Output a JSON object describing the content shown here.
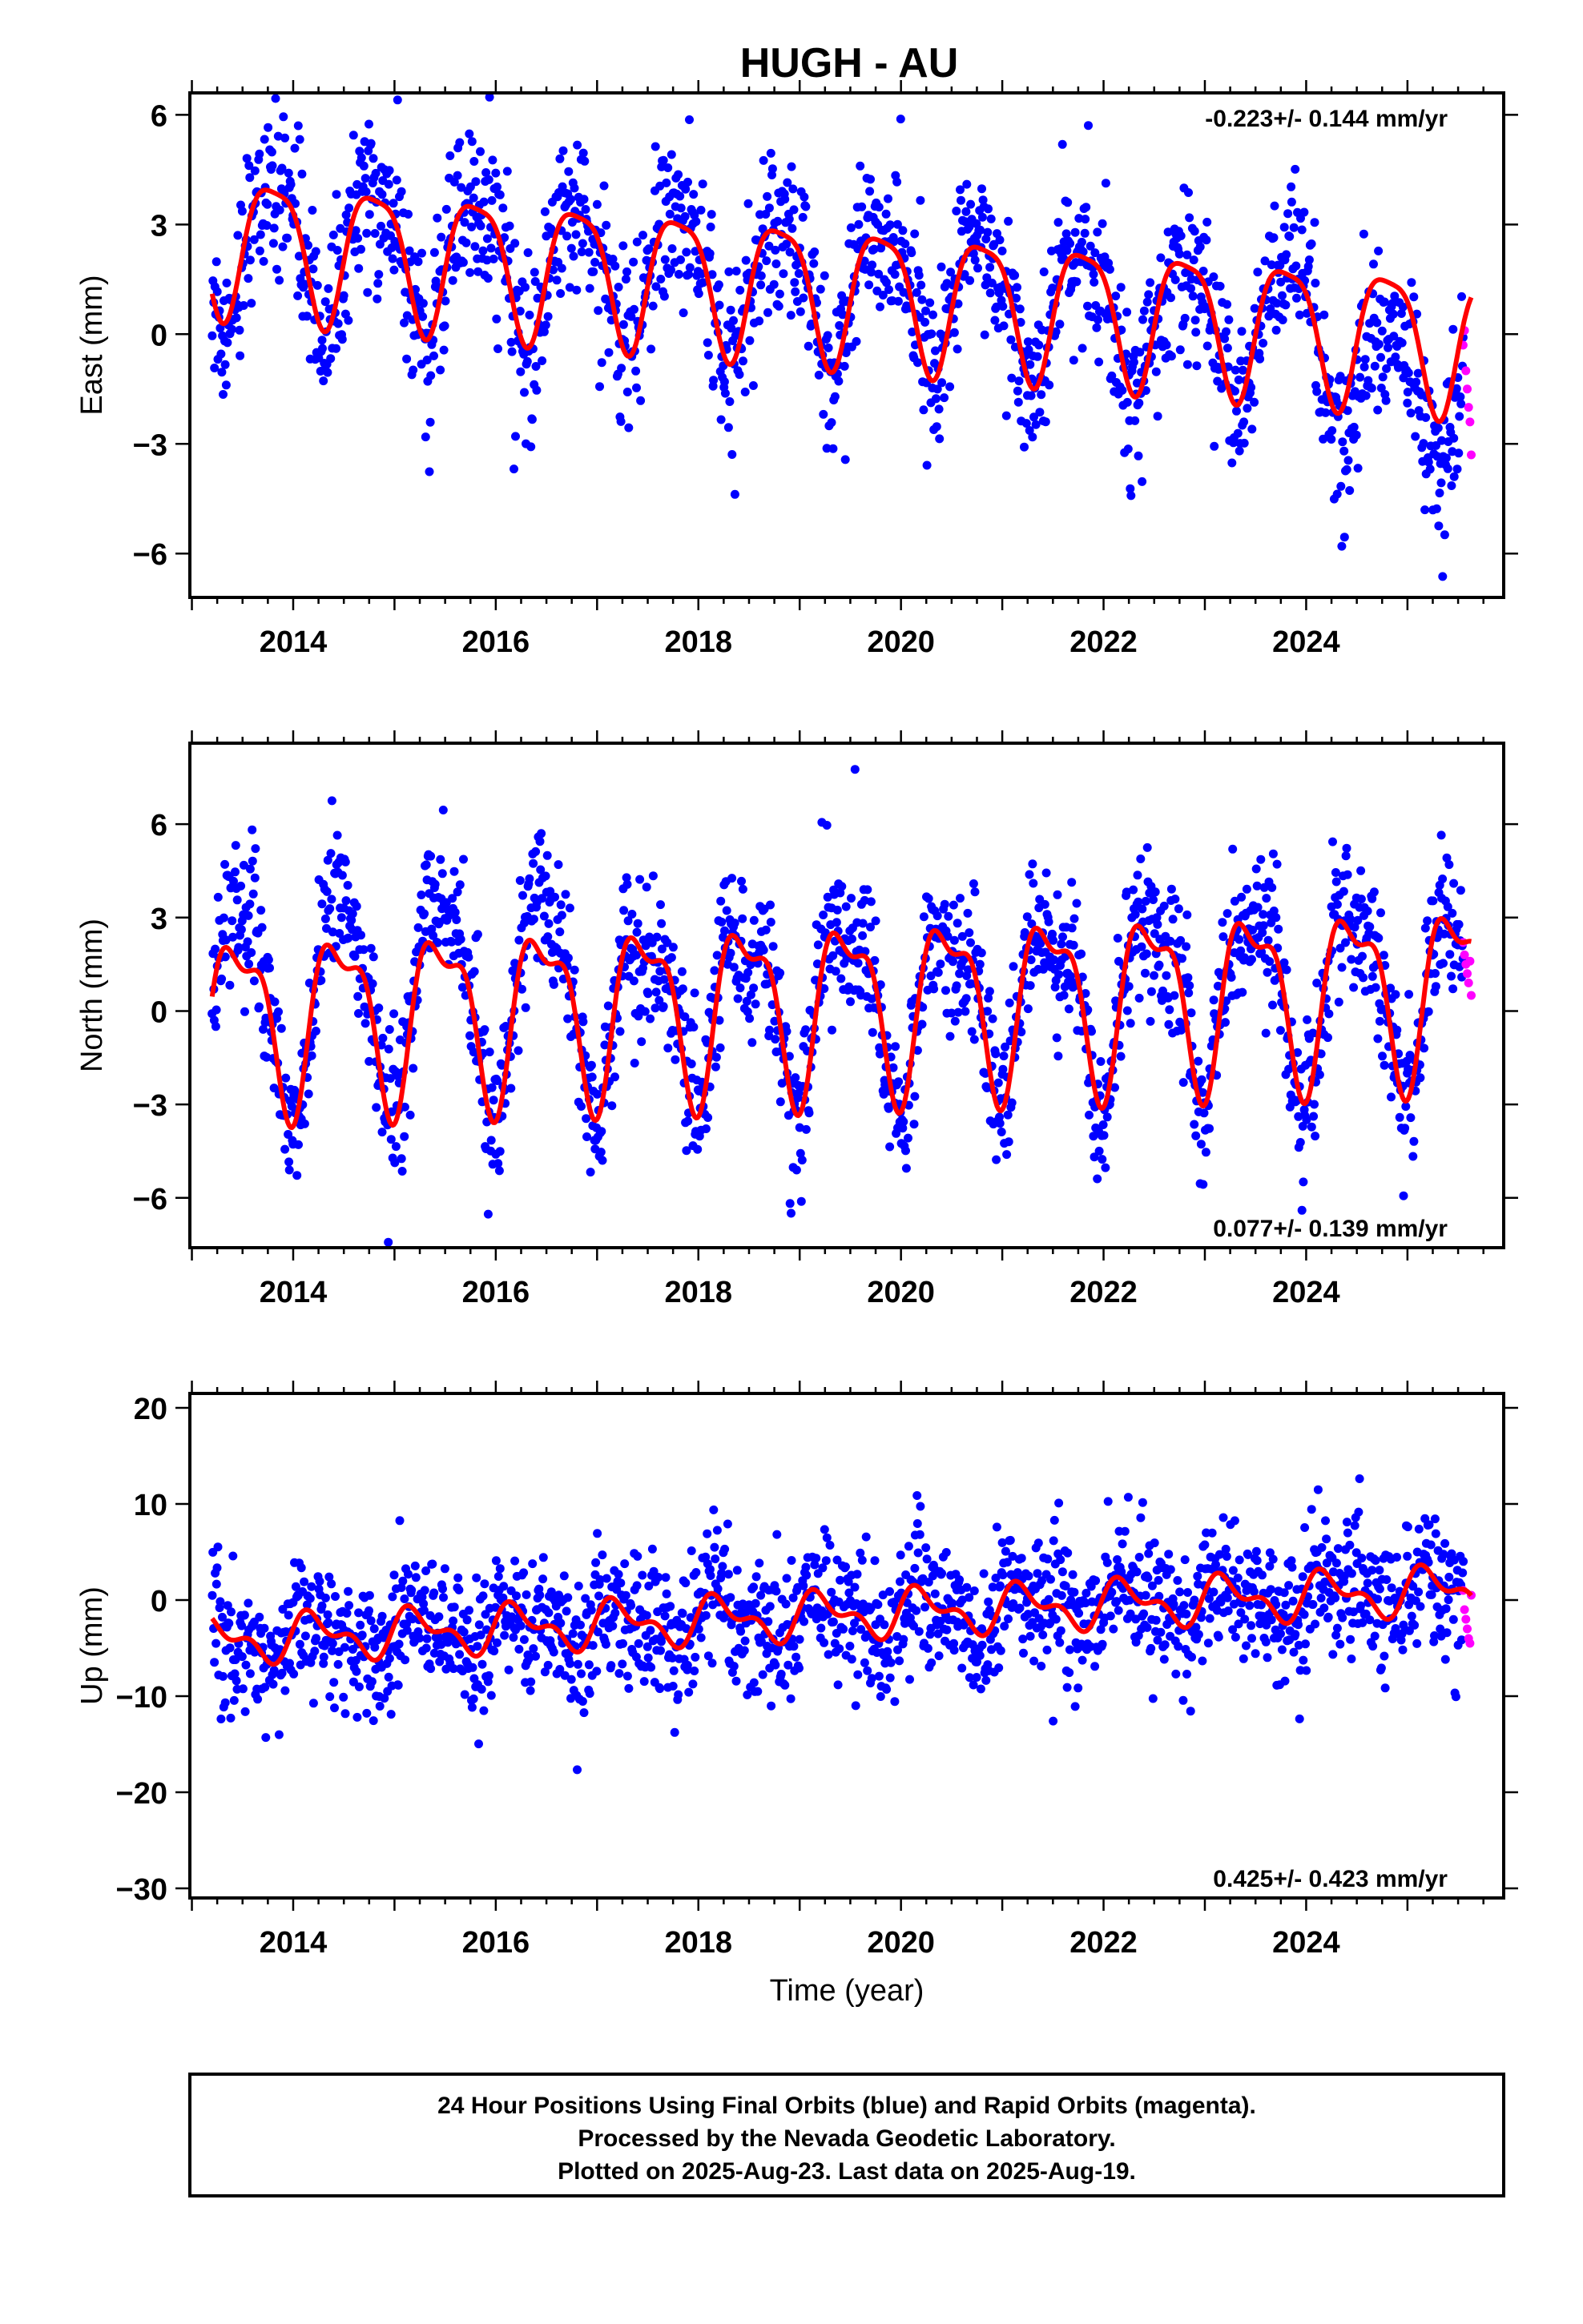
{
  "title": "HUGH - AU",
  "colors": {
    "final_orbits": "#0000ff",
    "rapid_orbits": "#ff00ff",
    "model_fit": "#ff0000",
    "frame": "#000000"
  },
  "caption": {
    "line1": "24 Hour Positions Using Final Orbits (blue) and Rapid Orbits (magenta).",
    "line2": "Processed by the Nevada Geodetic Laboratory.",
    "line3": "Plotted on 2025-Aug-23. Last data on 2025-Aug-19."
  },
  "chart_data": [
    {
      "type": "scatter",
      "panel": "east",
      "ylabel": "East (mm)",
      "xlabel": "",
      "xlim": [
        2012.98,
        2025.95
      ],
      "ylim": [
        -7.2,
        6.6
      ],
      "yticks": [
        -6,
        -3,
        0,
        3,
        6
      ],
      "xticks": [
        2014,
        2016,
        2018,
        2020,
        2022,
        2024
      ],
      "tick_labels_x": [
        "2014",
        "2016",
        "2018",
        "2020",
        "2022",
        "2024"
      ],
      "tick_labels_y": [
        "−6",
        "−3",
        "0",
        "3",
        "6"
      ],
      "rate_text": "-0.223+/- 0.144 mm/yr",
      "rate_position": "top-right",
      "data_start": 2013.2,
      "data_end": 2025.63,
      "rapid_start": 2025.55,
      "series": [
        {
          "name": "Final Orbits (blue)",
          "kind": "points",
          "model": {
            "offset": 1.2,
            "trend": -0.223,
            "annual_amp": 1.85,
            "annual_phase": 2.8,
            "semi_amp": 0.45,
            "semi_phase": 0.7,
            "extra_drop_after": 2024.35,
            "extra_drop": -1.4
          },
          "noise_sd": 1.1
        },
        {
          "name": "Rapid Orbits (magenta)",
          "kind": "points",
          "values_y": [
            -0.3,
            0.1,
            -1.0,
            -1.5,
            -2.0,
            -2.4,
            -3.3
          ]
        },
        {
          "name": "model fit",
          "kind": "line",
          "model": {
            "offset": 1.2,
            "trend": -0.223,
            "annual_amp": 1.85,
            "annual_phase": 2.8,
            "semi_amp": 0.45,
            "semi_phase": 0.7
          }
        }
      ]
    },
    {
      "type": "scatter",
      "panel": "north",
      "ylabel": "North (mm)",
      "xlabel": "",
      "xlim": [
        2012.98,
        2025.95
      ],
      "ylim": [
        -7.6,
        8.6
      ],
      "yticks": [
        -6,
        -3,
        0,
        3,
        6
      ],
      "xticks": [
        2014,
        2016,
        2018,
        2020,
        2022,
        2024
      ],
      "tick_labels_x": [
        "2014",
        "2016",
        "2018",
        "2020",
        "2022",
        "2024"
      ],
      "tick_labels_y": [
        "−6",
        "−3",
        "0",
        "3",
        "6"
      ],
      "rate_text": "0.077+/- 0.139 mm/yr",
      "rate_position": "bottom-right",
      "data_start": 2013.2,
      "data_end": 2025.63,
      "rapid_start": 2025.55,
      "series": [
        {
          "name": "Final Orbits (blue)",
          "kind": "points",
          "model": {
            "offset": 0.3,
            "trend": 0.077,
            "annual_amp": 2.6,
            "annual_phase": -1.35,
            "semi_amp": 1.05,
            "semi_phase": -1.5,
            "early_boost_until": 2016.9,
            "early_boost": 2.0
          },
          "noise_sd": 1.2
        },
        {
          "name": "Rapid Orbits (magenta)",
          "kind": "points",
          "values_y": [
            2.2,
            1.8,
            1.5,
            1.2,
            0.9,
            1.6,
            0.5
          ]
        },
        {
          "name": "model fit",
          "kind": "line",
          "model": {
            "offset": 0.3,
            "trend": 0.077,
            "annual_amp": 2.6,
            "annual_phase": -1.35,
            "semi_amp": 1.05,
            "semi_phase": -1.5
          }
        }
      ]
    },
    {
      "type": "scatter",
      "panel": "up",
      "ylabel": "Up (mm)",
      "xlabel": "Time (year)",
      "xlim": [
        2012.98,
        2025.95
      ],
      "ylim": [
        -31,
        21.5
      ],
      "yticks": [
        -30,
        -20,
        -10,
        0,
        10,
        20
      ],
      "xticks": [
        2014,
        2016,
        2018,
        2020,
        2022,
        2024
      ],
      "tick_labels_x": [
        "2014",
        "2016",
        "2018",
        "2020",
        "2022",
        "2024"
      ],
      "tick_labels_y": [
        "−30",
        "−20",
        "−10",
        "0",
        "10",
        "20"
      ],
      "rate_text": "0.425+/- 0.423 mm/yr",
      "rate_position": "bottom-right",
      "data_start": 2013.2,
      "data_end": 2025.63,
      "rapid_start": 2025.55,
      "series": [
        {
          "name": "Final Orbits (blue)",
          "kind": "points",
          "model": {
            "offset": -1.5,
            "trend": 0.425,
            "annual_amp": 2.0,
            "annual_phase": 0.2,
            "semi_amp": 1.2,
            "semi_phase": 0.4
          },
          "noise_sd": 3.6
        },
        {
          "name": "Rapid Orbits (magenta)",
          "kind": "points",
          "values_y": [
            1.0,
            -1.0,
            -2.0,
            -3.0,
            -4.0,
            -4.5,
            0.5
          ]
        },
        {
          "name": "model fit",
          "kind": "line",
          "model": {
            "offset": -1.5,
            "trend": 0.425,
            "annual_amp": 2.0,
            "annual_phase": 0.2,
            "semi_amp": 1.2,
            "semi_phase": 0.4
          }
        }
      ]
    }
  ]
}
